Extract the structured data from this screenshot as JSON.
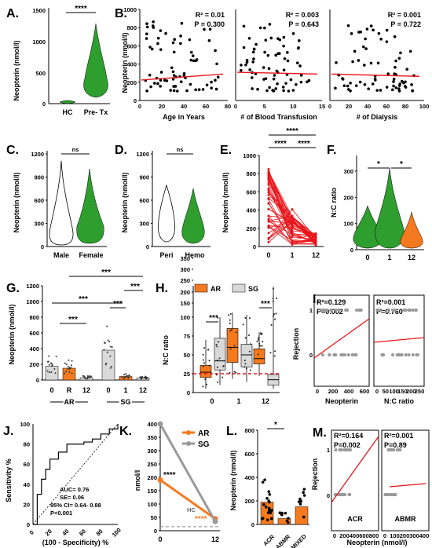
{
  "colors": {
    "green": "#2e9e2e",
    "red": "#e8151b",
    "orange": "#f57a1f",
    "grey": "#9a9a9a",
    "lightgrey": "#d9d9d9"
  },
  "panels": {
    "A": {
      "letter": "A.",
      "ylabel": "Neopterin (nmol/l)",
      "yticks": [
        "0",
        "500",
        "1000",
        "1500"
      ],
      "categories": [
        "HC",
        "Pre- Tx"
      ],
      "sig": "****"
    },
    "B": {
      "letter": "B.",
      "ylabel": "Neopterin (nmol/l)",
      "yticks": [
        "0",
        "200",
        "400",
        "600",
        "800",
        "1000"
      ],
      "sub": [
        {
          "xlabel": "Age in Years",
          "xticks": [
            "0",
            "20",
            "40",
            "60",
            "80"
          ],
          "r2": "R² = 0.01",
          "p": "P = 0.300"
        },
        {
          "xlabel": "# of Blood Transfusion",
          "xticks": [
            "0",
            "5",
            "10",
            "15"
          ],
          "r2": "R² = 0.003",
          "p": "P = 0.643"
        },
        {
          "xlabel": "# of Dialysis",
          "xticks": [
            "0",
            "20",
            "40",
            "60",
            "80",
            "100"
          ],
          "r2": "R² = 0.001",
          "p": "P = 0.722"
        }
      ]
    },
    "C": {
      "letter": "C.",
      "ylabel": "Neopterin (nmol/l)",
      "yticks": [
        "0",
        "300",
        "600",
        "900",
        "1200"
      ],
      "categories": [
        "Male",
        "Female"
      ],
      "sig": "ns"
    },
    "D": {
      "letter": "D.",
      "ylabel": "Neopterin (nmol/l)",
      "yticks": [
        "0",
        "300",
        "600",
        "900",
        "1200"
      ],
      "categories": [
        "Peri",
        "Hemo"
      ],
      "sig": "ns"
    },
    "E": {
      "letter": "E.",
      "ylabel": "Neopterin (nmol/l)",
      "yticks": [
        "0",
        "200",
        "400",
        "600",
        "800",
        "1000"
      ],
      "xticks": [
        "0",
        "1",
        "12"
      ],
      "sig": [
        "****",
        "****",
        "****"
      ]
    },
    "F": {
      "letter": "F.",
      "ylabel": "N:C ratio",
      "yticks": [
        "0",
        "100",
        "200",
        "300"
      ],
      "xticks": [
        "0",
        "1",
        "12"
      ],
      "sig": [
        "*",
        "*"
      ]
    },
    "G": {
      "letter": "G.",
      "ylabel": "Neopterin (nmol/l)",
      "yticks": [
        "0",
        "200",
        "400",
        "600",
        "800",
        "1000",
        "1200"
      ],
      "xticks": [
        "0",
        "R",
        "12",
        "0",
        "1",
        "12"
      ],
      "groups": [
        "AR",
        "SG"
      ],
      "sig": [
        "***",
        "***",
        "***",
        "***",
        "***"
      ]
    },
    "H": {
      "letter": "H.",
      "ylabel": "N:C ratio",
      "yticks": [
        "0",
        "25",
        "50",
        "75",
        "100",
        "150",
        "200",
        "250",
        "300",
        "350"
      ],
      "xticks": [
        "0",
        "1",
        "12"
      ],
      "legend": [
        "AR",
        "SG"
      ],
      "sig": [
        "***",
        "***"
      ]
    },
    "I": {
      "letter": "I.",
      "ylabel": "Rejection",
      "yticks": [
        "0",
        "1"
      ],
      "sub": [
        {
          "xlabel": "Neopterin",
          "xticks": [
            "0",
            "200",
            "400",
            "600"
          ],
          "r2": "R²=0.129",
          "p": "P=0.002"
        },
        {
          "xlabel": "N:C ratio",
          "xticks": [
            "0",
            "50",
            "100",
            "150",
            "200",
            "250"
          ],
          "r2": "R²=0.001",
          "p": "P=0.760"
        }
      ]
    },
    "J": {
      "letter": "J.",
      "ylabel": "Sensitivity %",
      "xlabel": "(100 - Specificity) %",
      "yticks": [
        "0",
        "20",
        "40",
        "60",
        "80",
        "100"
      ],
      "xticks": [
        "0",
        "20",
        "40",
        "60",
        "80",
        "100"
      ],
      "stats": [
        "AUC= 0.76",
        "SE= 0.06",
        "95% CI= 0.64- 0.88",
        "P<0.001"
      ]
    },
    "K": {
      "letter": "K.",
      "ylabel": "nmol/l",
      "yticks": [
        "0",
        "50",
        "100",
        "150",
        "200",
        "250",
        "300",
        "350",
        "400"
      ],
      "xticks": [
        "0",
        "12"
      ],
      "legend": [
        "AR",
        "SG"
      ],
      "hc": "HC",
      "sig_sg": "****",
      "sig_ar": "****"
    },
    "L": {
      "letter": "L.",
      "ylabel": "Neopterin (nmol/l)",
      "yticks": [
        "0",
        "200",
        "400",
        "600",
        "800"
      ],
      "categories": [
        "ACR",
        "ABMR",
        "MIXED"
      ],
      "sig": "*"
    },
    "M": {
      "letter": "M.",
      "ylabel": "Rejection",
      "yticks": [
        "0",
        "1"
      ],
      "xlabel": "Neopterin (nmol/l)",
      "sub": [
        {
          "label": "ACR",
          "xticks": [
            "0",
            "200",
            "400",
            "600",
            "800"
          ],
          "r2": "R²=0.164",
          "p": "P=0.002"
        },
        {
          "label": "ABMR",
          "xticks": [
            "0",
            "100",
            "200",
            "300",
            "400"
          ],
          "r2": "R²=0.001",
          "p": "P=0.89"
        }
      ]
    }
  },
  "chart_data": [
    {
      "panel": "A",
      "type": "violin",
      "categories": [
        "HC",
        "Pre- Tx"
      ],
      "median": [
        15,
        300
      ],
      "ylim": [
        0,
        1500
      ]
    },
    {
      "panel": "B",
      "type": "scatter",
      "x_label": [
        "Age in Years",
        "# of Blood Transfusion",
        "# of Dialysis"
      ],
      "ylim": [
        0,
        1000
      ],
      "fit_intercept": [
        225,
        310,
        290
      ],
      "fit_end": [
        290,
        290,
        265
      ]
    },
    {
      "panel": "C",
      "type": "violin",
      "categories": [
        "Male",
        "Female"
      ],
      "median": [
        230,
        250
      ],
      "ylim": [
        0,
        1200
      ]
    },
    {
      "panel": "D",
      "type": "violin",
      "categories": [
        "Peri",
        "Hemo"
      ],
      "median": [
        310,
        230
      ],
      "ylim": [
        0,
        1200
      ]
    },
    {
      "panel": "E",
      "type": "line",
      "x": [
        "0",
        "1",
        "12"
      ],
      "ylim": [
        0,
        1000
      ]
    },
    {
      "panel": "F",
      "type": "violin",
      "categories": [
        "0",
        "1",
        "12"
      ],
      "median": [
        35,
        50,
        30
      ],
      "ylim": [
        0,
        300
      ]
    },
    {
      "panel": "G",
      "type": "bar",
      "categories": [
        "0",
        "R",
        "12",
        "0",
        "1",
        "12"
      ],
      "values": [
        175,
        150,
        30,
        380,
        45,
        25
      ],
      "ylim": [
        0,
        1200
      ]
    },
    {
      "panel": "H",
      "type": "box",
      "categories": [
        "0",
        "1",
        "12"
      ],
      "series": [
        {
          "name": "AR",
          "median": [
            27,
            60,
            45
          ]
        },
        {
          "name": "SG",
          "median": [
            42,
            50,
            17
          ]
        }
      ],
      "reference": 23
    },
    {
      "panel": "J",
      "type": "line",
      "x": [
        0,
        5,
        10,
        15,
        20,
        30,
        40,
        50,
        60,
        70,
        80,
        90,
        100
      ],
      "y": [
        0,
        30,
        45,
        55,
        65,
        72,
        80,
        80,
        82,
        85,
        90,
        95,
        100
      ]
    },
    {
      "panel": "K",
      "type": "line",
      "x": [
        "0",
        "12"
      ],
      "series": [
        {
          "name": "AR",
          "values": [
            190,
            45
          ]
        },
        {
          "name": "SG",
          "values": [
            400,
            35
          ]
        }
      ],
      "reference": {
        "name": "HC",
        "value": 15
      },
      "ylim": [
        0,
        400
      ]
    },
    {
      "panel": "L",
      "type": "bar",
      "categories": [
        "ACR",
        "ABMR",
        "MIXED"
      ],
      "values": [
        190,
        50,
        150
      ],
      "ylim": [
        0,
        800
      ]
    }
  ]
}
